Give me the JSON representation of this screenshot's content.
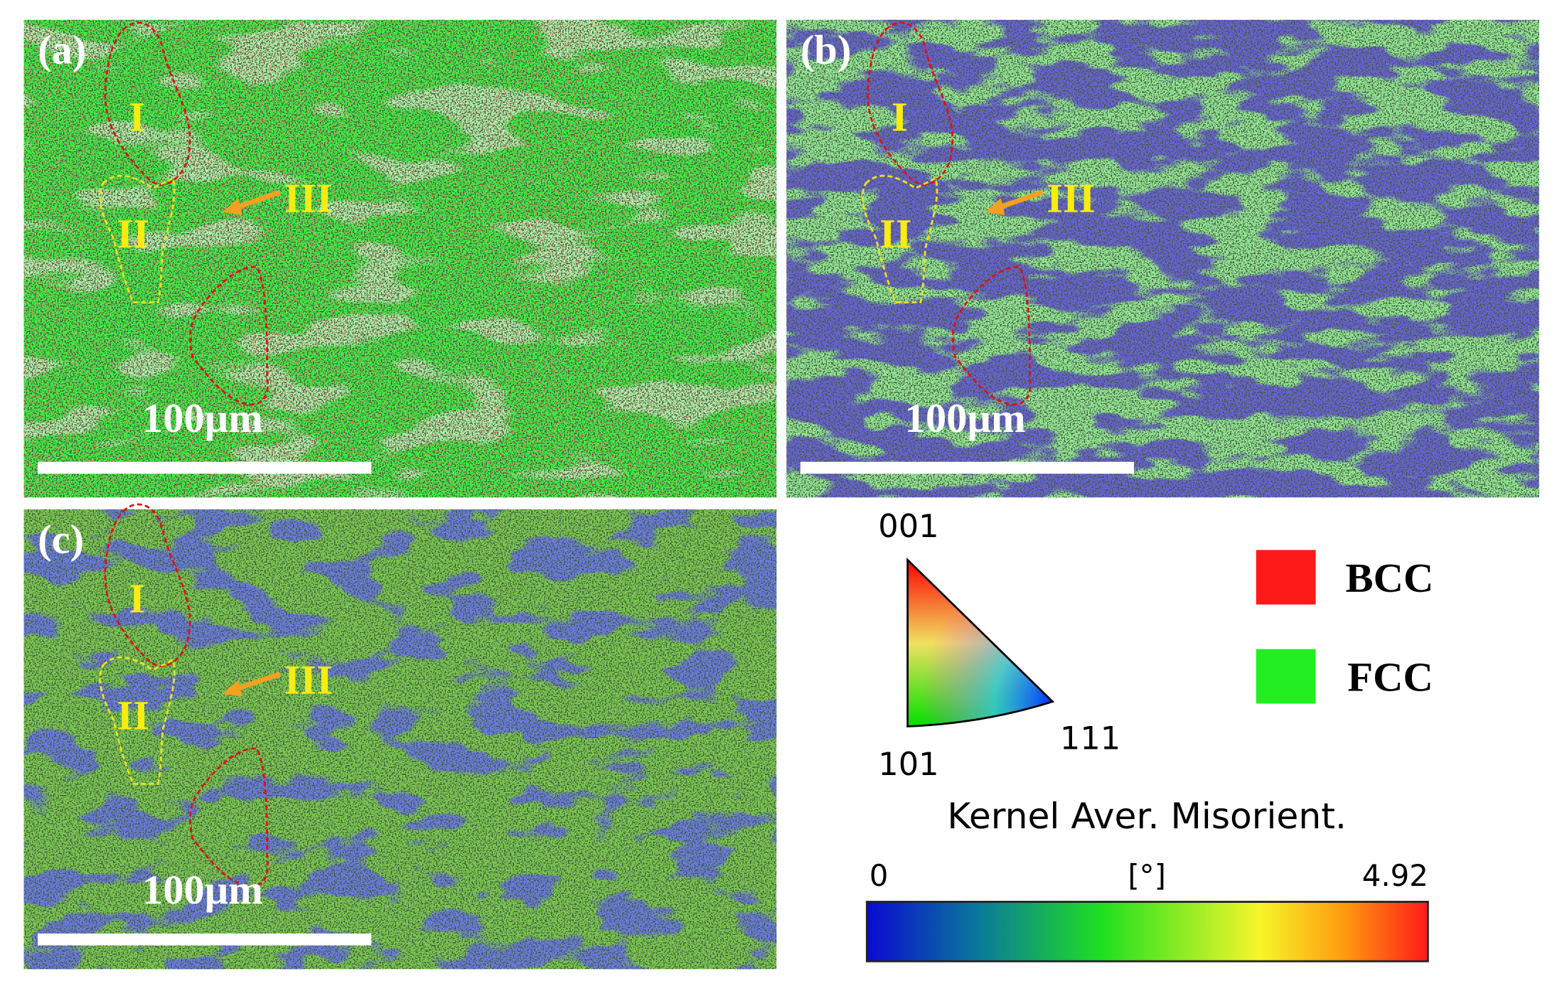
{
  "panels": [
    {
      "label": "(a)",
      "regions": [
        "I",
        "II",
        "III"
      ],
      "scale_bar": "100μm"
    },
    {
      "label": "(b)",
      "regions": [
        "I",
        "II",
        "III"
      ],
      "scale_bar": "100μm"
    },
    {
      "label": "(c)",
      "regions": [
        "I",
        "II",
        "III"
      ],
      "scale_bar": "100μm"
    }
  ],
  "legend": {
    "ipf_corners": [
      "001",
      "101",
      "111"
    ],
    "phases": [
      {
        "name": "BCC",
        "color": "#ff1a1a"
      },
      {
        "name": "FCC",
        "color": "#22ee22"
      }
    ],
    "kam": {
      "title": "Kernel Aver. Misorient.",
      "min": 0,
      "unit": "[°]",
      "max": 4.92
    }
  }
}
